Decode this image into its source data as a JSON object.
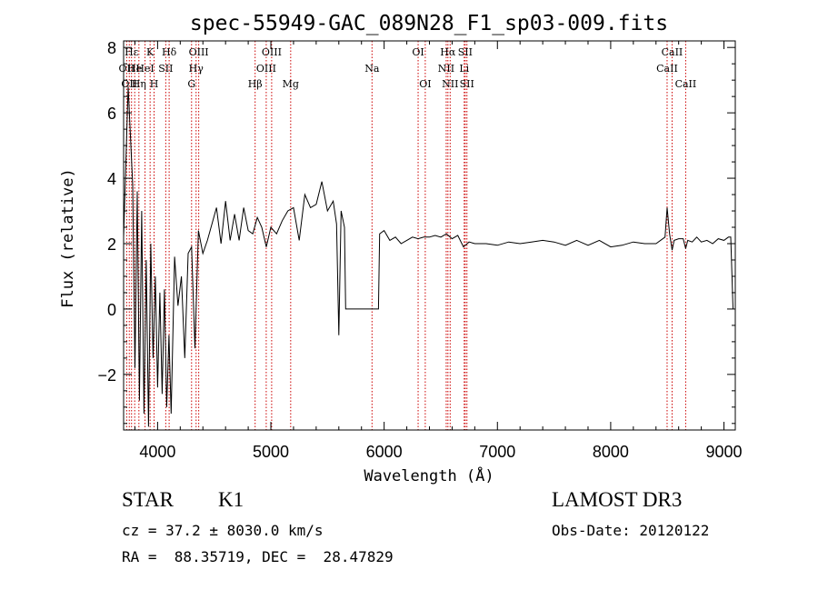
{
  "chart_data": {
    "type": "line",
    "title": "spec-55949-GAC_089N28_F1_sp03-009.fits",
    "xlabel": "Wavelength (Å)",
    "ylabel": "Flux (relative)",
    "xlim": [
      3700,
      9100
    ],
    "ylim": [
      -3.7,
      8.2
    ],
    "x_ticks": [
      4000,
      5000,
      6000,
      7000,
      8000,
      9000
    ],
    "x_tick_labels": [
      "4000",
      "5000",
      "6000",
      "7000",
      "8000",
      "9000"
    ],
    "y_ticks": [
      -2,
      0,
      2,
      4,
      6,
      8
    ],
    "y_tick_labels": [
      "−2",
      "0",
      "2",
      "4",
      "6",
      "8"
    ],
    "grid": false,
    "line_color": "#000000",
    "marker_color": "#cc0000",
    "series": [
      {
        "x": [
          3700,
          3740,
          3780,
          3800,
          3820,
          3840,
          3860,
          3880,
          3900,
          3920,
          3940,
          3960,
          3980,
          4000,
          4020,
          4040,
          4060,
          4080,
          4100,
          4120,
          4150,
          4180,
          4210,
          4240,
          4270,
          4300,
          4330,
          4360,
          4400,
          4440,
          4480,
          4520,
          4560,
          4600,
          4640,
          4680,
          4720,
          4760,
          4800,
          4840,
          4880,
          4920,
          4960,
          5000,
          5050,
          5100,
          5150,
          5200,
          5250,
          5300,
          5350,
          5400,
          5450,
          5500,
          5550,
          5580,
          5600,
          5620,
          5650,
          5660,
          5700,
          5800,
          5900,
          5950,
          5960,
          6000,
          6050,
          6100,
          6150,
          6200,
          6250,
          6300,
          6350,
          6400,
          6450,
          6500,
          6550,
          6600,
          6650,
          6700,
          6750,
          6800,
          6900,
          7000,
          7100,
          7200,
          7300,
          7400,
          7500,
          7600,
          7700,
          7800,
          7900,
          8000,
          8100,
          8200,
          8300,
          8400,
          8480,
          8498,
          8520,
          8542,
          8560,
          8600,
          8640,
          8662,
          8680,
          8720,
          8760,
          8800,
          8850,
          8900,
          8950,
          9000,
          9040,
          9060,
          9080
        ],
        "y": [
          2.2,
          6.8,
          3.8,
          -1.8,
          3.6,
          -2.8,
          3.0,
          -3.2,
          1.5,
          -3.6,
          2.0,
          -1.5,
          1.0,
          -2.4,
          0.5,
          -2.6,
          0.6,
          -3.0,
          -0.8,
          -3.2,
          1.6,
          0.1,
          1.0,
          -1.5,
          1.7,
          1.9,
          -1.2,
          2.4,
          1.7,
          2.1,
          2.6,
          3.1,
          2.0,
          3.3,
          2.1,
          2.9,
          2.1,
          3.1,
          2.4,
          2.3,
          2.8,
          2.5,
          1.9,
          2.5,
          2.3,
          2.7,
          3.0,
          3.1,
          2.1,
          3.5,
          3.1,
          3.2,
          3.9,
          3.0,
          3.3,
          2.6,
          -0.8,
          3.0,
          2.5,
          0.0,
          0.0,
          0.0,
          0.0,
          0.0,
          2.3,
          2.4,
          2.1,
          2.2,
          2.0,
          2.1,
          2.2,
          2.15,
          2.2,
          2.2,
          2.25,
          2.2,
          2.3,
          2.15,
          2.25,
          1.9,
          2.05,
          2.0,
          2.0,
          1.95,
          2.05,
          2.0,
          2.05,
          2.1,
          2.05,
          1.95,
          2.1,
          1.95,
          2.1,
          1.9,
          1.95,
          2.05,
          2.0,
          2.0,
          2.2,
          3.1,
          2.3,
          1.8,
          2.1,
          2.15,
          2.15,
          1.85,
          2.1,
          2.05,
          2.2,
          2.05,
          2.1,
          2.0,
          2.15,
          2.1,
          2.2,
          2.2,
          0.0
        ]
      }
    ],
    "line_markers": [
      {
        "wavelength": 3727,
        "label": "OII",
        "row": 1
      },
      {
        "wavelength": 3750,
        "label": "OII",
        "row": 2
      },
      {
        "wavelength": 3770,
        "label": "Hε",
        "row": 0
      },
      {
        "wavelength": 3798,
        "label": "He",
        "row": 1
      },
      {
        "wavelength": 3835,
        "label": "Hη",
        "row": 2
      },
      {
        "wavelength": 3889,
        "label": "HeI",
        "row": 1
      },
      {
        "wavelength": 3934,
        "label": "K",
        "row": 0
      },
      {
        "wavelength": 3969,
        "label": "H",
        "row": 2
      },
      {
        "wavelength": 4072,
        "label": "SII",
        "row": 1
      },
      {
        "wavelength": 4102,
        "label": "Hδ",
        "row": 0
      },
      {
        "wavelength": 4300,
        "label": "G",
        "row": 2
      },
      {
        "wavelength": 4340,
        "label": "Hγ",
        "row": 1
      },
      {
        "wavelength": 4363,
        "label": "OIII",
        "row": 0
      },
      {
        "wavelength": 4861,
        "label": "Hβ",
        "row": 2
      },
      {
        "wavelength": 4959,
        "label": "OIII",
        "row": 1
      },
      {
        "wavelength": 5007,
        "label": "OIII",
        "row": 0
      },
      {
        "wavelength": 5175,
        "label": "Mg",
        "row": 2
      },
      {
        "wavelength": 5893,
        "label": "Na",
        "row": 1
      },
      {
        "wavelength": 6300,
        "label": "OI",
        "row": 0
      },
      {
        "wavelength": 6363,
        "label": "OI",
        "row": 2
      },
      {
        "wavelength": 6548,
        "label": "NII",
        "row": 1
      },
      {
        "wavelength": 6563,
        "label": "Hα",
        "row": 0
      },
      {
        "wavelength": 6583,
        "label": "NII",
        "row": 2
      },
      {
        "wavelength": 6707,
        "label": "Li",
        "row": 1
      },
      {
        "wavelength": 6716,
        "label": "SII",
        "row": 0
      },
      {
        "wavelength": 6731,
        "label": "SII",
        "row": 2
      },
      {
        "wavelength": 8498,
        "label": "CaII",
        "row": 1
      },
      {
        "wavelength": 8542,
        "label": "CaII",
        "row": 0
      },
      {
        "wavelength": 8662,
        "label": "CaII",
        "row": 2
      }
    ]
  },
  "info": {
    "object_class": "STAR",
    "subclass": "K1",
    "survey": "LAMOST DR3",
    "cz_line": "cz = 37.2 ± 8030.0 km/s",
    "obs_date_line": "Obs-Date: 20120122",
    "coords_line": "RA =  88.35719, DEC =  28.47829"
  }
}
